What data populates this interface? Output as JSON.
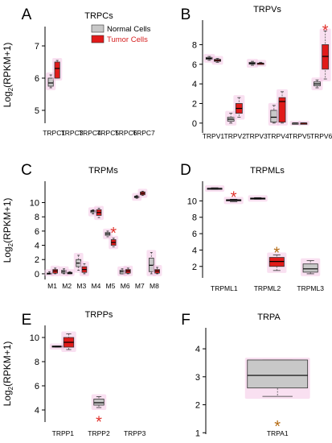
{
  "figure": {
    "legend": [
      {
        "label": "Normal Cells",
        "color": "#c8c8c8"
      },
      {
        "label": "Tumor Cells",
        "color": "#e11a1a"
      }
    ],
    "highlight_color": "#f4c6e6",
    "star_red": "#e0302a",
    "star_brown": "#b46a12"
  },
  "chart_data": [
    {
      "panel": "A",
      "title": "TRPCs",
      "type": "box",
      "ylabel": "Log2(RPKM+1)",
      "ylim": [
        4.6,
        7.6
      ],
      "yticks": [
        5,
        6,
        7
      ],
      "categories": [
        "TRPC1",
        "TRPC3",
        "TRPC4",
        "TRPC5",
        "TRPC6",
        "TRPC7"
      ],
      "series": [
        {
          "name": "Normal Cells",
          "boxes": [
            {
              "category": "TRPC1",
              "min": 5.7,
              "q1": 5.75,
              "median": 5.85,
              "q3": 6.0,
              "max": 6.1
            }
          ]
        },
        {
          "name": "Tumor Cells",
          "boxes": [
            {
              "category": "TRPC1",
              "min": 6.0,
              "q1": 6.0,
              "median": 6.3,
              "q3": 6.5,
              "max": 6.55
            }
          ]
        }
      ],
      "significance": []
    },
    {
      "panel": "B",
      "title": "TRPVs",
      "type": "box",
      "ylabel": "",
      "ylim": [
        -1.0,
        10.5
      ],
      "yticks": [
        0,
        2,
        4,
        6,
        8
      ],
      "categories": [
        "TRPV1",
        "TRPV2",
        "TRPV3",
        "TRPV4",
        "TRPV5",
        "TRPV6"
      ],
      "series": [
        {
          "name": "Normal Cells",
          "boxes": [
            {
              "category": "TRPV1",
              "min": 6.4,
              "q1": 6.5,
              "median": 6.6,
              "q3": 6.7,
              "max": 6.8
            },
            {
              "category": "TRPV2",
              "min": 0.0,
              "q1": 0.2,
              "median": 0.4,
              "q3": 0.6,
              "max": 1.0
            },
            {
              "category": "TRPV3",
              "min": 5.9,
              "q1": 6.0,
              "median": 6.1,
              "q3": 6.2,
              "max": 6.3
            },
            {
              "category": "TRPV4",
              "min": 0.0,
              "q1": 0.1,
              "median": 0.6,
              "q3": 1.3,
              "max": 1.8
            },
            {
              "category": "TRPV5",
              "min": 0.0,
              "q1": 0.0,
              "median": 0.0,
              "q3": 0.0,
              "max": 0.0
            },
            {
              "category": "TRPV6",
              "min": 3.6,
              "q1": 3.8,
              "median": 4.0,
              "q3": 4.2,
              "max": 4.4
            }
          ]
        },
        {
          "name": "Tumor Cells",
          "boxes": [
            {
              "category": "TRPV1",
              "min": 6.2,
              "q1": 6.3,
              "median": 6.4,
              "q3": 6.5,
              "max": 6.6
            },
            {
              "category": "TRPV2",
              "min": 0.6,
              "q1": 1.0,
              "median": 1.5,
              "q3": 2.0,
              "max": 2.6
            },
            {
              "category": "TRPV3",
              "min": 6.0,
              "q1": 6.0,
              "median": 6.1,
              "q3": 6.1,
              "max": 6.2
            },
            {
              "category": "TRPV4",
              "min": 0.0,
              "q1": 0.1,
              "median": 2.2,
              "q3": 2.6,
              "max": 3.2
            },
            {
              "category": "TRPV5",
              "min": 0.0,
              "q1": 0.0,
              "median": 0.0,
              "q3": 0.0,
              "max": 0.0
            },
            {
              "category": "TRPV6",
              "min": 4.5,
              "q1": 5.5,
              "median": 6.8,
              "q3": 8.0,
              "max": 9.4
            }
          ]
        }
      ],
      "significance": [
        {
          "category": "TRPV6",
          "y": 9.8,
          "color": "red"
        }
      ]
    },
    {
      "panel": "C",
      "title": "TRPMs",
      "type": "box",
      "ylabel": "Log2(RPKM+1)",
      "ylim": [
        -0.8,
        13.0
      ],
      "yticks": [
        0,
        2,
        4,
        6,
        8,
        10
      ],
      "categories": [
        "M1",
        "M2",
        "M3",
        "M4",
        "M5",
        "M6",
        "M7",
        "M8"
      ],
      "series": [
        {
          "name": "Normal Cells",
          "boxes": [
            {
              "category": "M1",
              "min": 0.0,
              "q1": 0.0,
              "median": 0.05,
              "q3": 0.1,
              "max": 0.3
            },
            {
              "category": "M2",
              "min": 0.0,
              "q1": 0.1,
              "median": 0.3,
              "q3": 0.5,
              "max": 0.7
            },
            {
              "category": "M3",
              "min": 0.5,
              "q1": 1.0,
              "median": 1.5,
              "q3": 2.0,
              "max": 2.6
            },
            {
              "category": "M4",
              "min": 8.4,
              "q1": 8.6,
              "median": 8.8,
              "q3": 8.9,
              "max": 9.0
            },
            {
              "category": "M5",
              "min": 5.2,
              "q1": 5.4,
              "median": 5.6,
              "q3": 5.8,
              "max": 6.0
            },
            {
              "category": "M6",
              "min": 0.0,
              "q1": 0.0,
              "median": 0.3,
              "q3": 0.5,
              "max": 0.7
            },
            {
              "category": "M7",
              "min": 10.6,
              "q1": 10.7,
              "median": 10.8,
              "q3": 10.9,
              "max": 11.0
            },
            {
              "category": "M8",
              "min": 0.0,
              "q1": 0.3,
              "median": 1.2,
              "q3": 2.2,
              "max": 3.0
            }
          ]
        },
        {
          "name": "Tumor Cells",
          "boxes": [
            {
              "category": "M1",
              "min": 0.0,
              "q1": 0.1,
              "median": 0.4,
              "q3": 0.6,
              "max": 0.8
            },
            {
              "category": "M2",
              "min": 0.0,
              "q1": 0.0,
              "median": 0.1,
              "q3": 0.2,
              "max": 0.3
            },
            {
              "category": "M3",
              "min": 0.0,
              "q1": 0.2,
              "median": 0.6,
              "q3": 1.0,
              "max": 1.4
            },
            {
              "category": "M4",
              "min": 7.9,
              "q1": 8.2,
              "median": 8.6,
              "q3": 9.0,
              "max": 9.2
            },
            {
              "category": "M5",
              "min": 3.8,
              "q1": 4.0,
              "median": 4.4,
              "q3": 4.8,
              "max": 5.0
            },
            {
              "category": "M6",
              "min": 0.0,
              "q1": 0.1,
              "median": 0.4,
              "q3": 0.6,
              "max": 0.8
            },
            {
              "category": "M7",
              "min": 11.0,
              "q1": 11.1,
              "median": 11.3,
              "q3": 11.5,
              "max": 11.6
            },
            {
              "category": "M8",
              "min": 0.0,
              "q1": 0.1,
              "median": 0.4,
              "q3": 0.6,
              "max": 0.9
            }
          ]
        }
      ],
      "significance": [
        {
          "category": "M5",
          "y": 6.2,
          "color": "red"
        }
      ]
    },
    {
      "panel": "D",
      "title": "TRPMLs",
      "type": "box",
      "ylabel": "",
      "ylim": [
        0.6,
        12.4
      ],
      "yticks": [
        2,
        4,
        6,
        8,
        10
      ],
      "categories": [
        "TRPML1",
        "TRPML2",
        "TRPML3"
      ],
      "series": [
        {
          "name": "Normal Cells",
          "boxes": [
            {
              "category": "TRPML1",
              "min": 11.4,
              "q1": 11.45,
              "median": 11.5,
              "q3": 11.55,
              "max": 11.6
            },
            {
              "category": "TRPML2",
              "min": 10.2,
              "q1": 10.25,
              "median": 10.3,
              "q3": 10.35,
              "max": 10.4
            },
            {
              "category": "TRPML3",
              "min": 1.1,
              "q1": 1.3,
              "median": 1.7,
              "q3": 2.3,
              "max": 2.7
            }
          ]
        },
        {
          "name": "Tumor Cells",
          "boxes": [
            {
              "category": "TRPML1",
              "min": 9.9,
              "q1": 10.0,
              "median": 10.1,
              "q3": 10.15,
              "max": 10.2
            },
            {
              "category": "TRPML2",
              "min": 1.5,
              "q1": 2.0,
              "median": 2.6,
              "q3": 3.1,
              "max": 3.4
            }
          ]
        }
      ],
      "significance": [
        {
          "category": "TRPML1",
          "y": 10.9,
          "color": "red"
        },
        {
          "category": "TRPML2",
          "y": 4.1,
          "color": "brown"
        }
      ]
    },
    {
      "panel": "E",
      "title": "TRPPs",
      "type": "box",
      "ylabel": "Log2(RPKM+1)",
      "ylim": [
        3.0,
        11.0
      ],
      "yticks": [
        4,
        6,
        8,
        10
      ],
      "categories": [
        "TRPP1",
        "TRPP2",
        "TRPP3"
      ],
      "series": [
        {
          "name": "Normal Cells",
          "boxes": [
            {
              "category": "TRPP1",
              "min": 9.2,
              "q1": 9.2,
              "median": 9.25,
              "q3": 9.3,
              "max": 9.3
            },
            {
              "category": "TRPP2",
              "min": 4.2,
              "q1": 4.4,
              "median": 4.6,
              "q3": 4.9,
              "max": 5.1
            }
          ]
        },
        {
          "name": "Tumor Cells",
          "boxes": [
            {
              "category": "TRPP1",
              "min": 9.0,
              "q1": 9.2,
              "median": 9.6,
              "q3": 10.0,
              "max": 10.3
            }
          ]
        }
      ],
      "significance": [
        {
          "category": "TRPP2",
          "y": 3.3,
          "color": "red"
        }
      ]
    },
    {
      "panel": "F",
      "title": "TRPA",
      "type": "box",
      "ylabel": "",
      "ylim": [
        0.95,
        4.75
      ],
      "yticks": [
        1,
        2,
        3,
        4
      ],
      "categories": [
        "TRPA1"
      ],
      "series": [
        {
          "name": "Normal Cells",
          "boxes": [
            {
              "category": "TRPA1",
              "min": 2.3,
              "q1": 2.6,
              "median": 3.05,
              "q3": 3.6,
              "max": 3.6
            }
          ]
        }
      ],
      "significance": [
        {
          "category": "TRPA1",
          "y": 1.35,
          "color": "brown"
        }
      ]
    }
  ]
}
